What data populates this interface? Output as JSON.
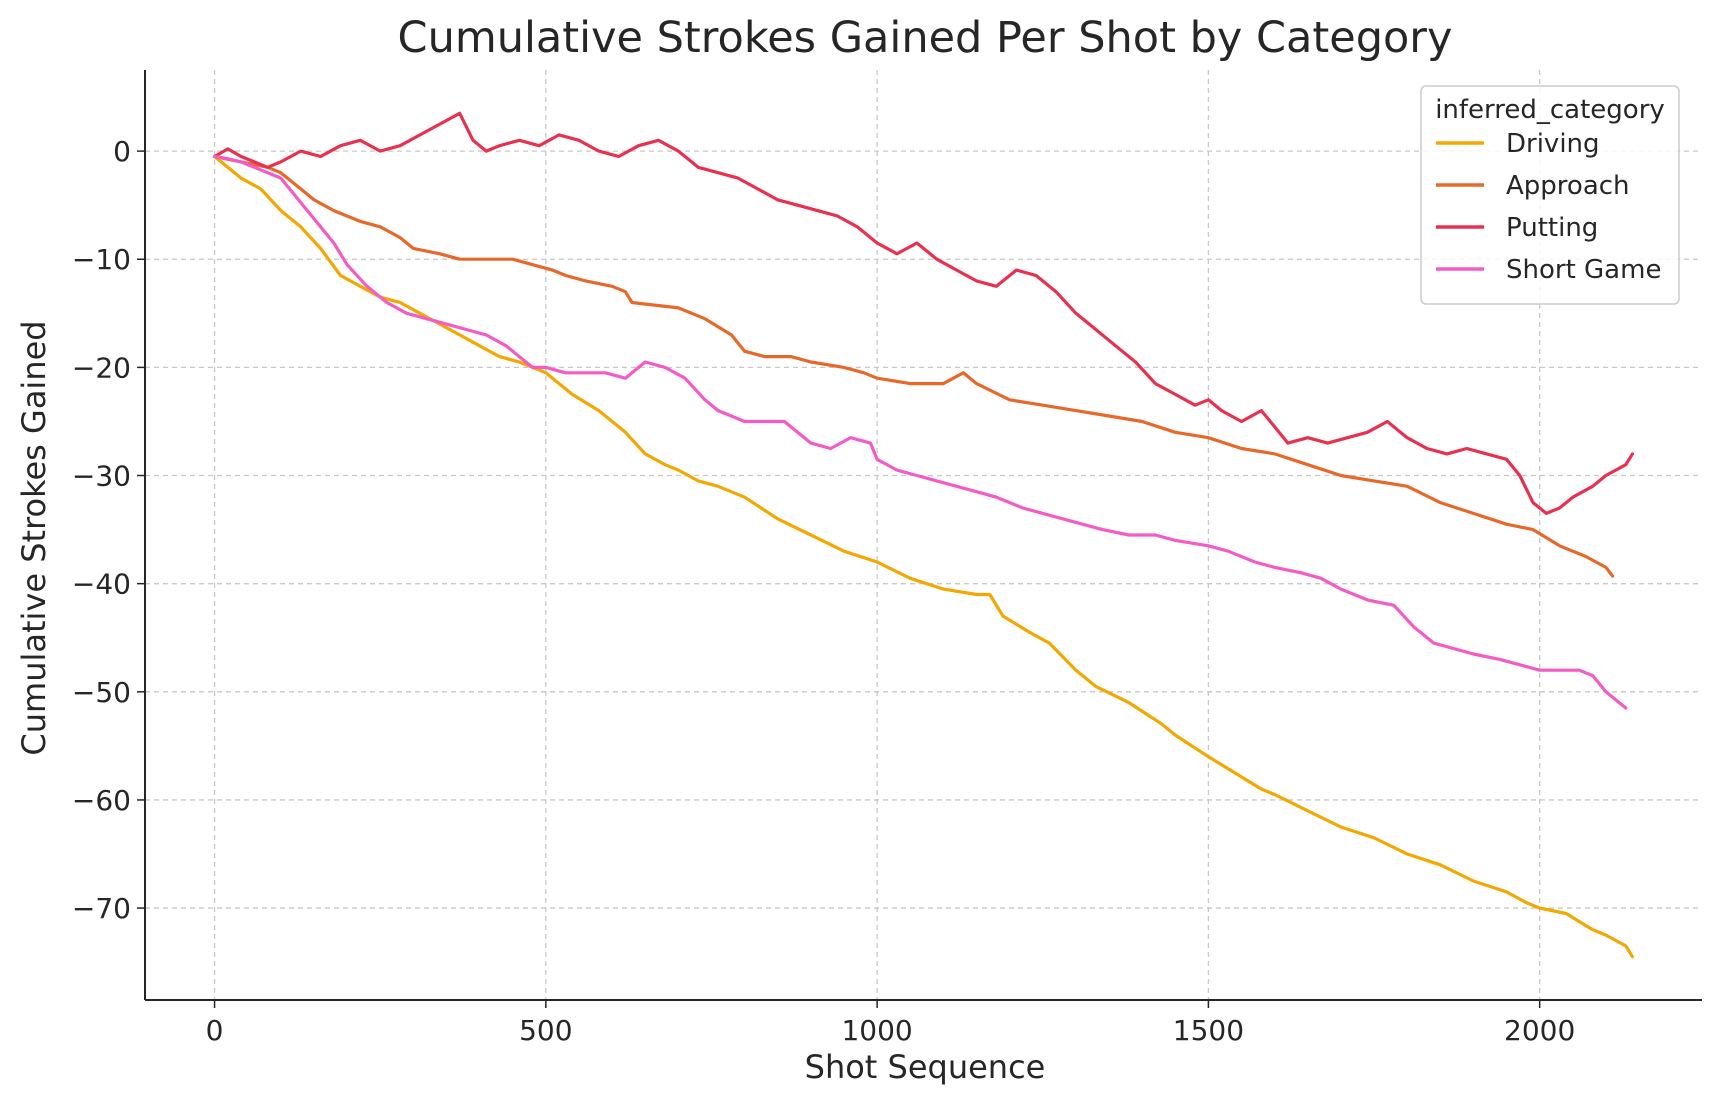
{
  "chart_data": {
    "type": "line",
    "title": "Cumulative Strokes Gained Per Shot by Category",
    "xlabel": "Shot Sequence",
    "ylabel": "Cumulative Strokes Gained",
    "xlim": [
      -105,
      2245
    ],
    "ylim": [
      -78.5,
      7.5
    ],
    "xticks": [
      0,
      500,
      1000,
      1500,
      2000
    ],
    "xtick_labels": [
      "0",
      "500",
      "1000",
      "1500",
      "2000"
    ],
    "yticks": [
      0,
      -10,
      -20,
      -30,
      -40,
      -50,
      -60,
      -70
    ],
    "ytick_labels": [
      "0",
      "−10",
      "−20",
      "−30",
      "−40",
      "−50",
      "−60",
      "−70"
    ],
    "grid": true,
    "grid_style": "dashed",
    "legend": {
      "title": "inferred_category",
      "placement": "top-right"
    },
    "series": [
      {
        "name": "Driving",
        "color": "#F4A700",
        "x": [
          0,
          20,
          40,
          70,
          100,
          130,
          160,
          190,
          220,
          250,
          280,
          310,
          340,
          370,
          400,
          430,
          460,
          500,
          540,
          580,
          620,
          650,
          680,
          700,
          730,
          760,
          800,
          850,
          900,
          950,
          1000,
          1050,
          1100,
          1150,
          1170,
          1190,
          1230,
          1260,
          1300,
          1330,
          1380,
          1430,
          1450,
          1500,
          1540,
          1580,
          1600,
          1650,
          1700,
          1750,
          1800,
          1850,
          1900,
          1950,
          1980,
          2000,
          2040,
          2080,
          2100,
          2130,
          2140
        ],
        "y": [
          -0.5,
          -1.5,
          -2.5,
          -3.5,
          -5.5,
          -7,
          -9,
          -11.5,
          -12.5,
          -13.5,
          -14,
          -15,
          -16,
          -17,
          -18,
          -19,
          -19.5,
          -20.5,
          -22.5,
          -24,
          -26,
          -28,
          -29,
          -29.5,
          -30.5,
          -31,
          -32,
          -34,
          -35.5,
          -37,
          -38,
          -39.5,
          -40.5,
          -41,
          -41,
          -43,
          -44.5,
          -45.5,
          -48,
          -49.5,
          -51,
          -53,
          -54,
          -56,
          -57.5,
          -59,
          -59.5,
          -61,
          -62.5,
          -63.5,
          -65,
          -66,
          -67.5,
          -68.5,
          -69.5,
          -70,
          -70.5,
          -72,
          -72.5,
          -73.5,
          -74.5
        ]
      },
      {
        "name": "Approach",
        "color": "#E8682A",
        "x": [
          0,
          40,
          80,
          100,
          120,
          150,
          180,
          220,
          250,
          280,
          300,
          340,
          370,
          400,
          450,
          480,
          510,
          530,
          560,
          600,
          620,
          630,
          700,
          740,
          780,
          800,
          830,
          870,
          900,
          950,
          980,
          1000,
          1050,
          1100,
          1130,
          1150,
          1200,
          1250,
          1300,
          1350,
          1400,
          1450,
          1500,
          1550,
          1600,
          1650,
          1700,
          1750,
          1800,
          1850,
          1900,
          1950,
          1990,
          2030,
          2070,
          2100,
          2110
        ],
        "y": [
          -0.5,
          -1,
          -1.5,
          -2,
          -3,
          -4.5,
          -5.5,
          -6.5,
          -7,
          -8,
          -9,
          -9.5,
          -10,
          -10,
          -10,
          -10.5,
          -11,
          -11.5,
          -12,
          -12.5,
          -13,
          -14,
          -14.5,
          -15.5,
          -17,
          -18.5,
          -19,
          -19,
          -19.5,
          -20,
          -20.5,
          -21,
          -21.5,
          -21.5,
          -20.5,
          -21.5,
          -23,
          -23.5,
          -24,
          -24.5,
          -25,
          -26,
          -26.5,
          -27.5,
          -28,
          -29,
          -30,
          -30.5,
          -31,
          -32.5,
          -33.5,
          -34.5,
          -35,
          -36.5,
          -37.5,
          -38.5,
          -39.3
        ]
      },
      {
        "name": "Putting",
        "color": "#E8304F",
        "x": [
          0,
          20,
          40,
          60,
          80,
          100,
          130,
          160,
          190,
          220,
          250,
          280,
          310,
          340,
          370,
          390,
          410,
          430,
          460,
          490,
          520,
          550,
          580,
          610,
          640,
          670,
          700,
          730,
          760,
          790,
          820,
          850,
          880,
          910,
          940,
          970,
          1000,
          1030,
          1060,
          1090,
          1120,
          1150,
          1180,
          1210,
          1240,
          1270,
          1300,
          1330,
          1360,
          1390,
          1420,
          1450,
          1480,
          1500,
          1520,
          1550,
          1580,
          1600,
          1620,
          1650,
          1680,
          1710,
          1740,
          1770,
          1800,
          1830,
          1860,
          1890,
          1920,
          1950,
          1970,
          1990,
          2010,
          2030,
          2050,
          2080,
          2100,
          2130,
          2140
        ],
        "y": [
          -0.5,
          0.2,
          -0.5,
          -1,
          -1.5,
          -1,
          0,
          -0.5,
          0.5,
          1,
          0,
          0.5,
          1.5,
          2.5,
          3.5,
          1,
          0,
          0.5,
          1,
          0.5,
          1.5,
          1,
          0,
          -0.5,
          0.5,
          1,
          0,
          -1.5,
          -2,
          -2.5,
          -3.5,
          -4.5,
          -5,
          -5.5,
          -6,
          -7,
          -8.5,
          -9.5,
          -8.5,
          -10,
          -11,
          -12,
          -12.5,
          -11,
          -11.5,
          -13,
          -15,
          -16.5,
          -18,
          -19.5,
          -21.5,
          -22.5,
          -23.5,
          -23,
          -24,
          -25,
          -24,
          -25.5,
          -27,
          -26.5,
          -27,
          -26.5,
          -26,
          -25,
          -26.5,
          -27.5,
          -28,
          -27.5,
          -28,
          -28.5,
          -30,
          -32.5,
          -33.5,
          -33,
          -32,
          -31,
          -30,
          -29,
          -28
        ]
      },
      {
        "name": "Short Game",
        "color": "#F45BC4",
        "x": [
          0,
          20,
          40,
          60,
          80,
          100,
          120,
          140,
          160,
          180,
          200,
          230,
          260,
          290,
          320,
          350,
          380,
          410,
          440,
          460,
          480,
          500,
          530,
          560,
          590,
          620,
          650,
          680,
          710,
          740,
          760,
          780,
          800,
          830,
          860,
          880,
          900,
          930,
          960,
          990,
          1000,
          1030,
          1060,
          1090,
          1120,
          1150,
          1180,
          1220,
          1250,
          1280,
          1310,
          1340,
          1380,
          1420,
          1450,
          1500,
          1530,
          1570,
          1600,
          1640,
          1670,
          1700,
          1740,
          1780,
          1810,
          1840,
          1870,
          1900,
          1940,
          1970,
          2000,
          2030,
          2060,
          2080,
          2100,
          2120,
          2130
        ],
        "y": [
          -0.5,
          -0.7,
          -1,
          -1.5,
          -2,
          -2.5,
          -4,
          -5.5,
          -7,
          -8.5,
          -10.5,
          -12.5,
          -14,
          -15,
          -15.5,
          -16,
          -16.5,
          -17,
          -18,
          -19,
          -20,
          -20,
          -20.5,
          -20.5,
          -20.5,
          -21,
          -19.5,
          -20,
          -21,
          -23,
          -24,
          -24.5,
          -25,
          -25,
          -25,
          -26,
          -27,
          -27.5,
          -26.5,
          -27,
          -28.5,
          -29.5,
          -30,
          -30.5,
          -31,
          -31.5,
          -32,
          -33,
          -33.5,
          -34,
          -34.5,
          -35,
          -35.5,
          -35.5,
          -36,
          -36.5,
          -37,
          -38,
          -38.5,
          -39,
          -39.5,
          -40.5,
          -41.5,
          -42,
          -44,
          -45.5,
          -46,
          -46.5,
          -47,
          -47.5,
          -48,
          -48,
          -48,
          -48.5,
          -50,
          -51,
          -51.5
        ]
      }
    ]
  }
}
